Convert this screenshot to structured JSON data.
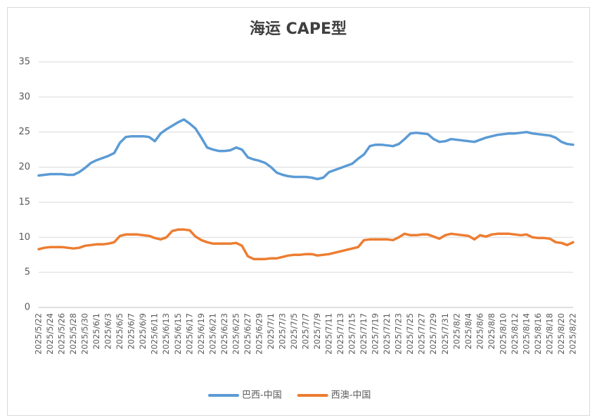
{
  "chart_data": {
    "type": "line",
    "title": "海运 CAPE型",
    "categories": [
      "2025/5/22",
      null,
      "2025/5/24",
      null,
      "2025/5/26",
      null,
      "2025/5/28",
      null,
      "2025/5/30",
      null,
      "2025/6/1",
      null,
      "2025/6/3",
      null,
      "2025/6/5",
      null,
      "2025/6/7",
      null,
      "2025/6/9",
      null,
      "2025/6/11",
      null,
      "2025/6/13",
      null,
      "2025/6/15",
      null,
      "2025/6/17",
      null,
      "2025/6/19",
      null,
      "2025/6/21",
      null,
      "2025/6/23",
      null,
      "2025/6/25",
      null,
      "2025/6/27",
      null,
      "2025/6/29",
      null,
      "2025/7/1",
      null,
      "2025/7/3",
      null,
      "2025/7/5",
      null,
      "2025/7/7",
      null,
      "2025/7/9",
      null,
      "2025/7/11",
      null,
      "2025/7/13",
      null,
      "2025/7/15",
      null,
      "2025/7/17",
      null,
      "2025/7/19",
      null,
      "2025/7/21",
      null,
      "2025/7/23",
      null,
      "2025/7/25",
      null,
      "2025/7/27",
      null,
      "2025/7/29",
      null,
      "2025/7/31",
      null,
      "2025/8/2",
      null,
      "2025/8/4",
      null,
      "2025/8/6",
      null,
      "2025/8/8",
      null,
      "2025/8/10",
      null,
      "2025/8/12",
      null,
      "2025/8/14",
      null,
      "2025/8/16",
      null,
      "2025/8/18",
      null,
      "2025/8/20",
      null,
      "2025/8/22"
    ],
    "series": [
      {
        "name": "巴西-中国",
        "color": "#5b9bd5",
        "values": [
          18.8,
          18.9,
          19.0,
          19.0,
          19.0,
          18.9,
          18.9,
          19.3,
          19.9,
          20.6,
          21.0,
          21.3,
          21.6,
          22.0,
          23.5,
          24.3,
          24.4,
          24.4,
          24.4,
          24.3,
          23.7,
          24.8,
          25.4,
          25.9,
          26.4,
          26.8,
          26.2,
          25.5,
          24.2,
          22.8,
          22.5,
          22.3,
          22.3,
          22.4,
          22.8,
          22.5,
          21.4,
          21.1,
          20.9,
          20.6,
          20.0,
          19.2,
          18.9,
          18.7,
          18.6,
          18.6,
          18.6,
          18.5,
          18.3,
          18.5,
          19.3,
          19.6,
          19.9,
          20.2,
          20.5,
          21.2,
          21.8,
          23.0,
          23.2,
          23.2,
          23.1,
          23.0,
          23.3,
          24.0,
          24.8,
          24.9,
          24.8,
          24.7,
          24.0,
          23.6,
          23.7,
          24.0,
          23.9,
          23.8,
          23.7,
          23.6,
          23.9,
          24.2,
          24.4,
          24.6,
          24.7,
          24.8,
          24.8,
          24.9,
          25.0,
          24.8,
          24.7,
          24.6,
          24.5,
          24.2,
          23.6,
          23.3,
          23.2
        ]
      },
      {
        "name": "西澳-中国",
        "color": "#ed7d31",
        "values": [
          8.3,
          8.5,
          8.6,
          8.6,
          8.6,
          8.5,
          8.4,
          8.5,
          8.8,
          8.9,
          9.0,
          9.0,
          9.1,
          9.3,
          10.2,
          10.4,
          10.4,
          10.4,
          10.3,
          10.2,
          9.9,
          9.7,
          10.0,
          10.9,
          11.1,
          11.1,
          11.0,
          10.1,
          9.6,
          9.3,
          9.1,
          9.1,
          9.1,
          9.1,
          9.2,
          8.8,
          7.3,
          6.9,
          6.9,
          6.9,
          7.0,
          7.0,
          7.2,
          7.4,
          7.5,
          7.5,
          7.6,
          7.6,
          7.4,
          7.5,
          7.6,
          7.8,
          8.0,
          8.2,
          8.4,
          8.6,
          9.6,
          9.7,
          9.7,
          9.7,
          9.7,
          9.6,
          10.0,
          10.5,
          10.3,
          10.3,
          10.4,
          10.4,
          10.1,
          9.8,
          10.3,
          10.5,
          10.4,
          10.3,
          10.2,
          9.7,
          10.3,
          10.1,
          10.4,
          10.5,
          10.5,
          10.5,
          10.4,
          10.3,
          10.4,
          10.0,
          9.9,
          9.9,
          9.8,
          9.3,
          9.2,
          8.9,
          9.3
        ]
      }
    ],
    "ylim": [
      0,
      35
    ],
    "yticks": [
      0,
      5,
      10,
      15,
      20,
      25,
      30,
      35
    ],
    "grid": true,
    "legend": "bottom"
  }
}
